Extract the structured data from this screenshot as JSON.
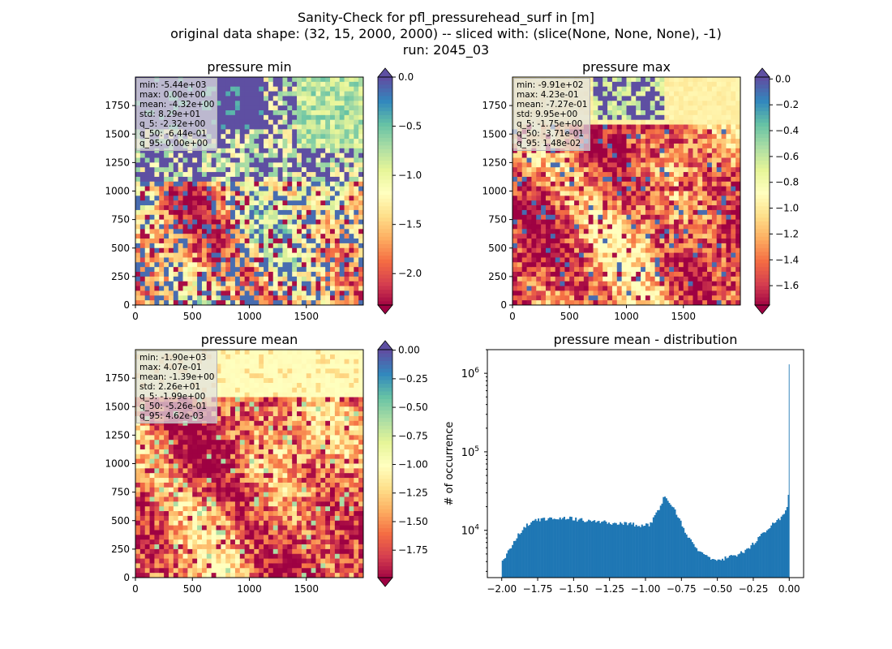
{
  "figure": {
    "suptitle_lines": [
      "Sanity-Check for pfl_pressurehead_surf in [m]",
      "original data shape: (32, 15, 2000, 2000) -- sliced with: (slice(None, None, None), -1)",
      "run: 2045_03"
    ]
  },
  "colors": {
    "spectral": [
      "#9e0142",
      "#d53e4f",
      "#f46d43",
      "#fdae61",
      "#fee08b",
      "#ffffbf",
      "#e6f598",
      "#abdda4",
      "#66c2a5",
      "#3288bd",
      "#5e4fa2"
    ],
    "histogram_bar": "#1f77b4"
  },
  "chart_data": [
    {
      "type": "heatmap",
      "title": "pressure min",
      "x_ticks": [
        "0",
        "500",
        "1000",
        "1500"
      ],
      "y_ticks": [
        "0",
        "250",
        "500",
        "750",
        "1000",
        "1250",
        "1500",
        "1750"
      ],
      "xlim": [
        0,
        2000
      ],
      "ylim": [
        0,
        2000
      ],
      "colorbar": {
        "vmin": -2.32,
        "vmax": 0.0,
        "ticks": [
          "0.0",
          "-0.5",
          "-1.0",
          "-1.5",
          "-2.0"
        ],
        "tick_values": [
          0.0,
          -0.5,
          -1.0,
          -1.5,
          -2.0
        ],
        "extend": "both"
      },
      "stats": [
        "min: -5.44e+03",
        "max: 0.00e+00",
        "mean: -4.32e+00",
        "std: 8.29e+01",
        "q_5: -2.32e+00",
        "q_50: -6.44e-01",
        "q_95: 0.00e+00"
      ]
    },
    {
      "type": "heatmap",
      "title": "pressure max",
      "x_ticks": [
        "0",
        "500",
        "1000",
        "1500"
      ],
      "y_ticks": [
        "0",
        "250",
        "500",
        "750",
        "1000",
        "1250",
        "1500",
        "1750"
      ],
      "xlim": [
        0,
        2000
      ],
      "ylim": [
        0,
        2000
      ],
      "colorbar": {
        "vmin": -1.75,
        "vmax": 0.0148,
        "ticks": [
          "0.0",
          "-0.2",
          "-0.4",
          "-0.6",
          "-0.8",
          "-1.0",
          "-1.2",
          "-1.4",
          "-1.6"
        ],
        "tick_values": [
          0.0,
          -0.2,
          -0.4,
          -0.6,
          -0.8,
          -1.0,
          -1.2,
          -1.4,
          -1.6
        ],
        "extend": "both"
      },
      "stats": [
        "min: -9.91e+02",
        "max: 4.23e-01",
        "mean: -7.27e-01",
        "std: 9.95e+00",
        "q_5: -1.75e+00",
        "q_50: -3.71e-01",
        "q_95: 1.48e-02"
      ]
    },
    {
      "type": "heatmap",
      "title": "pressure mean",
      "x_ticks": [
        "0",
        "500",
        "1000",
        "1500"
      ],
      "y_ticks": [
        "0",
        "250",
        "500",
        "750",
        "1000",
        "1250",
        "1500",
        "1750"
      ],
      "xlim": [
        0,
        2000
      ],
      "ylim": [
        0,
        2000
      ],
      "colorbar": {
        "vmin": -1.99,
        "vmax": 0.00462,
        "ticks": [
          "0.00",
          "-0.25",
          "-0.50",
          "-0.75",
          "-1.00",
          "-1.25",
          "-1.50",
          "-1.75"
        ],
        "tick_values": [
          0.0,
          -0.25,
          -0.5,
          -0.75,
          -1.0,
          -1.25,
          -1.5,
          -1.75
        ],
        "extend": "both"
      },
      "stats": [
        "min: -1.90e+03",
        "max: 4.07e-01",
        "mean: -1.39e+00",
        "std: 2.26e+01",
        "q_5: -1.99e+00",
        "q_50: -5.26e-01",
        "q_95: 4.62e-03"
      ]
    },
    {
      "type": "bar",
      "title": "pressure mean - distribution",
      "ylabel": "# of occurrence",
      "yscale": "log",
      "xlim": [
        -2.1,
        0.1
      ],
      "ylim": [
        2500,
        2000000
      ],
      "x_ticks": [
        {
          "value": -2.0,
          "label": "−2.00"
        },
        {
          "value": -1.75,
          "label": "−1.75"
        },
        {
          "value": -1.5,
          "label": "−1.50"
        },
        {
          "value": -1.25,
          "label": "−1.25"
        },
        {
          "value": -1.0,
          "label": "−1.00"
        },
        {
          "value": -0.75,
          "label": "−0.75"
        },
        {
          "value": -0.5,
          "label": "−0.50"
        },
        {
          "value": -0.25,
          "label": "−0.25"
        },
        {
          "value": 0.0,
          "label": "0.00"
        }
      ],
      "y_ticks": [
        {
          "value": 10000,
          "base": "10",
          "exp": "4"
        },
        {
          "value": 100000,
          "base": "10",
          "exp": "5"
        },
        {
          "value": 1000000,
          "base": "10",
          "exp": "6"
        }
      ],
      "profile": [
        [
          -2.0,
          3600
        ],
        [
          -1.99,
          4400
        ],
        [
          -1.97,
          4800
        ],
        [
          -1.95,
          5600
        ],
        [
          -1.92,
          7000
        ],
        [
          -1.88,
          9000
        ],
        [
          -1.84,
          11000
        ],
        [
          -1.8,
          12500
        ],
        [
          -1.75,
          13500
        ],
        [
          -1.7,
          14000
        ],
        [
          -1.6,
          14500
        ],
        [
          -1.5,
          14000
        ],
        [
          -1.4,
          13200
        ],
        [
          -1.3,
          12800
        ],
        [
          -1.2,
          12300
        ],
        [
          -1.1,
          12000
        ],
        [
          -1.0,
          11500
        ],
        [
          -0.97,
          12000
        ],
        [
          -0.92,
          16500
        ],
        [
          -0.89,
          22000
        ],
        [
          -0.87,
          27000
        ],
        [
          -0.85,
          26000
        ],
        [
          -0.82,
          21000
        ],
        [
          -0.78,
          16000
        ],
        [
          -0.74,
          11000
        ],
        [
          -0.7,
          8000
        ],
        [
          -0.65,
          6000
        ],
        [
          -0.6,
          5200
        ],
        [
          -0.55,
          4500
        ],
        [
          -0.5,
          4300
        ],
        [
          -0.45,
          4400
        ],
        [
          -0.4,
          4700
        ],
        [
          -0.35,
          5000
        ],
        [
          -0.3,
          5600
        ],
        [
          -0.25,
          6800
        ],
        [
          -0.2,
          8500
        ],
        [
          -0.15,
          10500
        ],
        [
          -0.1,
          12500
        ],
        [
          -0.06,
          14000
        ],
        [
          -0.03,
          17000
        ],
        [
          -0.015,
          21000
        ],
        [
          -0.005,
          30000
        ],
        [
          0.0,
          1300000
        ]
      ]
    }
  ]
}
